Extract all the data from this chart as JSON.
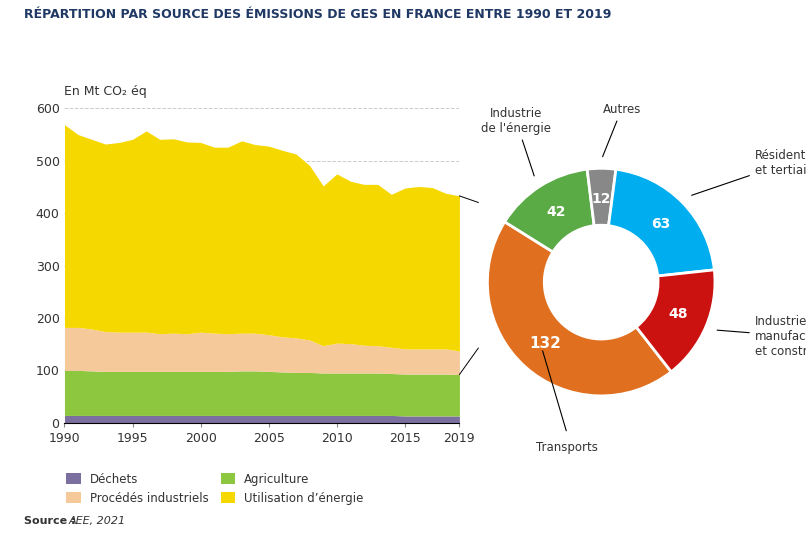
{
  "title": "RÉPARTITION PAR SOURCE DES ÉMISSIONS DE GES EN FRANCE ENTRE 1990 ET 2019",
  "ylabel": "En Mt CO₂ éq",
  "source": "Source : AEE, 2021",
  "years": [
    1990,
    1991,
    1992,
    1993,
    1994,
    1995,
    1996,
    1997,
    1998,
    1999,
    2000,
    2001,
    2002,
    2003,
    2004,
    2005,
    2006,
    2007,
    2008,
    2009,
    2010,
    2011,
    2012,
    2013,
    2014,
    2015,
    2016,
    2017,
    2018,
    2019
  ],
  "dechets": [
    14,
    14,
    14,
    14,
    14,
    14,
    14,
    14,
    14,
    14,
    14,
    14,
    14,
    14,
    14,
    14,
    14,
    14,
    14,
    14,
    14,
    14,
    14,
    14,
    14,
    13,
    13,
    13,
    13,
    13
  ],
  "agriculture": [
    86,
    86,
    85,
    84,
    84,
    84,
    84,
    84,
    84,
    84,
    84,
    84,
    84,
    85,
    85,
    84,
    83,
    82,
    82,
    81,
    81,
    81,
    81,
    81,
    80,
    80,
    80,
    80,
    80,
    79
  ],
  "procedes": [
    82,
    82,
    80,
    76,
    75,
    75,
    75,
    72,
    73,
    72,
    75,
    73,
    72,
    72,
    72,
    70,
    67,
    66,
    62,
    52,
    57,
    56,
    53,
    52,
    50,
    48,
    48,
    48,
    48,
    45
  ],
  "utilisation": [
    387,
    368,
    362,
    358,
    362,
    368,
    384,
    371,
    371,
    366,
    362,
    355,
    356,
    367,
    360,
    360,
    356,
    351,
    333,
    305,
    323,
    310,
    307,
    308,
    292,
    307,
    310,
    308,
    297,
    296
  ],
  "area_colors": {
    "dechets": "#7b6fa0",
    "agriculture": "#8dc63f",
    "procedes": "#f5c99a",
    "utilisation": "#f5d800"
  },
  "legend_labels": {
    "dechets": "Déchets",
    "agriculture": "Agriculture",
    "procedes": "Procédés industriels",
    "utilisation": "Utilisation d’énergie"
  },
  "donut_values": [
    42,
    12,
    63,
    48,
    132
  ],
  "donut_labels": [
    "Industrie\nde l’énergie",
    "Autres",
    "Résidentiel\net tertiaire",
    "Industrie\nmanufacturière\net construction",
    "Transports\n132"
  ],
  "donut_ext_labels": [
    "Industrie\nde l’énergie",
    "Autres",
    "Résidentiel\net tertiaire",
    "Industrie\nmanufacturière\net construction",
    "Transports"
  ],
  "donut_inner_vals": [
    "42",
    "12",
    "63",
    "48",
    "132"
  ],
  "donut_colors": [
    "#5aaa46",
    "#888888",
    "#00aeef",
    "#cc1111",
    "#e07020"
  ],
  "ylim": [
    0,
    600
  ],
  "yticks": [
    0,
    100,
    200,
    300,
    400,
    500,
    600
  ],
  "title_color": "#1f3864",
  "text_color": "#333333",
  "background_color": "#ffffff",
  "grid_color": "#cccccc"
}
